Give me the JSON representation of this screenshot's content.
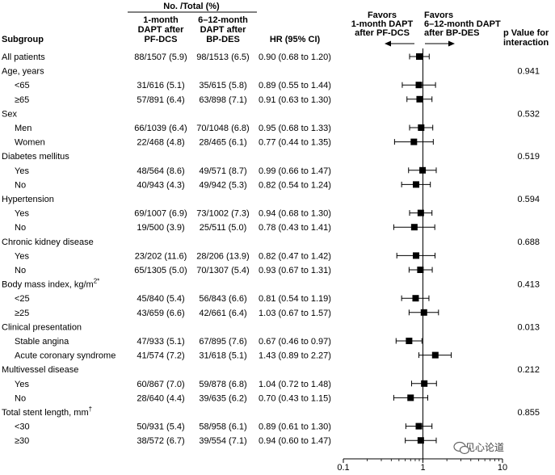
{
  "header": {
    "subgroup": "Subgroup",
    "no_total": "No. /Total (%)",
    "col1": [
      "1-month",
      "DAPT after",
      "PF-DCS"
    ],
    "col2": [
      "6–12-month",
      "DAPT after",
      "BP-DES"
    ],
    "hr": "HR (95% CI)",
    "pval": [
      "p Value for",
      "interaction"
    ],
    "favors_left": [
      "Favors",
      "1-month DAPT",
      "after PF-DCS"
    ],
    "favors_right": [
      "Favors",
      "6–12-month DAPT",
      "after BP-DES"
    ]
  },
  "watermark": "见心论道",
  "chart_data": {
    "type": "forest",
    "xscale": "log",
    "xlim": [
      0.1,
      10
    ],
    "xticks": [
      "0.1",
      "1",
      "10"
    ],
    "reference_line": 1,
    "rows": [
      {
        "label": "All patients",
        "indent": false,
        "a": "88/1507 (5.9)",
        "b": "98/1513 (6.5)",
        "hr_text": "0.90 (0.68 to 1.20)",
        "hr": 0.9,
        "lo": 0.68,
        "hi": 1.2,
        "p": ""
      },
      {
        "label": "Age, years",
        "indent": false,
        "a": "",
        "b": "",
        "hr_text": "",
        "hr": null,
        "lo": null,
        "hi": null,
        "p": "0.941"
      },
      {
        "label": "<65",
        "indent": true,
        "a": "31/616 (5.1)",
        "b": "35/615 (5.8)",
        "hr_text": "0.89 (0.55 to 1.44)",
        "hr": 0.89,
        "lo": 0.55,
        "hi": 1.44,
        "p": ""
      },
      {
        "label": "≥65",
        "indent": true,
        "a": "57/891 (6.4)",
        "b": "63/898 (7.1)",
        "hr_text": "0.91 (0.63 to 1.30)",
        "hr": 0.91,
        "lo": 0.63,
        "hi": 1.3,
        "p": ""
      },
      {
        "label": "Sex",
        "indent": false,
        "a": "",
        "b": "",
        "hr_text": "",
        "hr": null,
        "lo": null,
        "hi": null,
        "p": "0.532"
      },
      {
        "label": "Men",
        "indent": true,
        "a": "66/1039 (6.4)",
        "b": "70/1048 (6.8)",
        "hr_text": "0.95 (0.68 to 1.33)",
        "hr": 0.95,
        "lo": 0.68,
        "hi": 1.33,
        "p": ""
      },
      {
        "label": "Women",
        "indent": true,
        "a": "22/468 (4.8)",
        "b": "28/465 (6.1)",
        "hr_text": "0.77 (0.44 to 1.35)",
        "hr": 0.77,
        "lo": 0.44,
        "hi": 1.35,
        "p": ""
      },
      {
        "label": "Diabetes mellitus",
        "indent": false,
        "a": "",
        "b": "",
        "hr_text": "",
        "hr": null,
        "lo": null,
        "hi": null,
        "p": "0.519"
      },
      {
        "label": "Yes",
        "indent": true,
        "a": "48/564 (8.6)",
        "b": "49/571 (8.7)",
        "hr_text": "0.99 (0.66 to 1.47)",
        "hr": 0.99,
        "lo": 0.66,
        "hi": 1.47,
        "p": ""
      },
      {
        "label": "No",
        "indent": true,
        "a": "40/943 (4.3)",
        "b": "49/942 (5.3)",
        "hr_text": "0.82 (0.54 to 1.24)",
        "hr": 0.82,
        "lo": 0.54,
        "hi": 1.24,
        "p": ""
      },
      {
        "label": "Hypertension",
        "indent": false,
        "a": "",
        "b": "",
        "hr_text": "",
        "hr": null,
        "lo": null,
        "hi": null,
        "p": "0.594"
      },
      {
        "label": "Yes",
        "indent": true,
        "a": "69/1007 (6.9)",
        "b": "73/1002 (7.3)",
        "hr_text": "0.94 (0.68 to 1.30)",
        "hr": 0.94,
        "lo": 0.68,
        "hi": 1.3,
        "p": ""
      },
      {
        "label": "No",
        "indent": true,
        "a": "19/500 (3.9)",
        "b": "25/511 (5.0)",
        "hr_text": "0.78 (0.43 to 1.41)",
        "hr": 0.78,
        "lo": 0.43,
        "hi": 1.41,
        "p": ""
      },
      {
        "label": "Chronic kidney disease",
        "indent": false,
        "a": "",
        "b": "",
        "hr_text": "",
        "hr": null,
        "lo": null,
        "hi": null,
        "p": "0.688"
      },
      {
        "label": "Yes",
        "indent": true,
        "a": "23/202 (11.6)",
        "b": "28/206 (13.9)",
        "hr_text": "0.82 (0.47 to 1.42)",
        "hr": 0.82,
        "lo": 0.47,
        "hi": 1.42,
        "p": ""
      },
      {
        "label": "No",
        "indent": true,
        "a": "65/1305 (5.0)",
        "b": "70/1307 (5.4)",
        "hr_text": "0.93 (0.67 to 1.31)",
        "hr": 0.93,
        "lo": 0.67,
        "hi": 1.31,
        "p": ""
      },
      {
        "label": "Body mass index, kg/m",
        "sup": "2*",
        "indent": false,
        "a": "",
        "b": "",
        "hr_text": "",
        "hr": null,
        "lo": null,
        "hi": null,
        "p": "0.413"
      },
      {
        "label": "<25",
        "indent": true,
        "a": "45/840 (5.4)",
        "b": "56/843 (6.6)",
        "hr_text": "0.81 (0.54 to 1.19)",
        "hr": 0.81,
        "lo": 0.54,
        "hi": 1.19,
        "p": ""
      },
      {
        "label": "≥25",
        "indent": true,
        "a": "43/659 (6.6)",
        "b": "42/661 (6.4)",
        "hr_text": "1.03 (0.67 to 1.57)",
        "hr": 1.03,
        "lo": 0.67,
        "hi": 1.57,
        "p": ""
      },
      {
        "label": "Clinical presentation",
        "indent": false,
        "a": "",
        "b": "",
        "hr_text": "",
        "hr": null,
        "lo": null,
        "hi": null,
        "p": "0.013"
      },
      {
        "label": "Stable angina",
        "indent": true,
        "a": "47/933 (5.1)",
        "b": "67/895 (7.6)",
        "hr_text": "0.67 (0.46 to 0.97)",
        "hr": 0.67,
        "lo": 0.46,
        "hi": 0.97,
        "p": ""
      },
      {
        "label": "Acute coronary syndrome",
        "indent": true,
        "a": "41/574 (7.2)",
        "b": "31/618 (5.1)",
        "hr_text": "1.43 (0.89 to 2.27)",
        "hr": 1.43,
        "lo": 0.89,
        "hi": 2.27,
        "p": ""
      },
      {
        "label": "Multivessel disease",
        "indent": false,
        "a": "",
        "b": "",
        "hr_text": "",
        "hr": null,
        "lo": null,
        "hi": null,
        "p": "0.212"
      },
      {
        "label": "Yes",
        "indent": true,
        "a": "60/867 (7.0)",
        "b": "59/878 (6.8)",
        "hr_text": "1.04 (0.72 to 1.48)",
        "hr": 1.04,
        "lo": 0.72,
        "hi": 1.48,
        "p": ""
      },
      {
        "label": "No",
        "indent": true,
        "a": "28/640 (4.4)",
        "b": "39/635 (6.2)",
        "hr_text": "0.70 (0.43 to 1.15)",
        "hr": 0.7,
        "lo": 0.43,
        "hi": 1.15,
        "p": ""
      },
      {
        "label": "Total stent length, mm",
        "sup": "†",
        "indent": false,
        "a": "",
        "b": "",
        "hr_text": "",
        "hr": null,
        "lo": null,
        "hi": null,
        "p": "0.855"
      },
      {
        "label": "<30",
        "indent": true,
        "a": "50/931 (5.4)",
        "b": "58/958 (6.1)",
        "hr_text": "0.89 (0.61 to 1.30)",
        "hr": 0.89,
        "lo": 0.61,
        "hi": 1.3,
        "p": ""
      },
      {
        "label": "≥30",
        "indent": true,
        "a": "38/572 (6.7)",
        "b": "39/554 (7.1)",
        "hr_text": "0.94 (0.60 to 1.47)",
        "hr": 0.94,
        "lo": 0.6,
        "hi": 1.47,
        "p": ""
      }
    ]
  }
}
